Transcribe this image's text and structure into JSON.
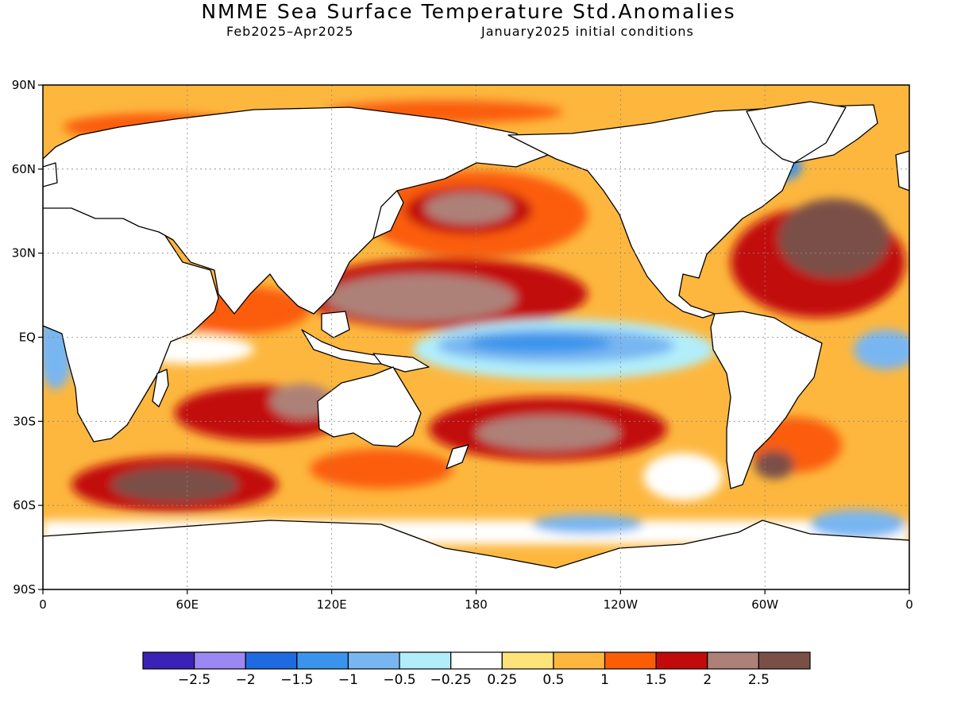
{
  "title": "NMME Sea Surface Temperature Std.Anomalies",
  "subtitle_left": "Feb2025–Apr2025",
  "subtitle_right": "January2025 initial conditions",
  "lat_labels": [
    "90N",
    "60N",
    "30N",
    "EQ",
    "30S",
    "60S",
    "90S"
  ],
  "lon_labels": [
    "0",
    "60E",
    "120E",
    "180",
    "120W",
    "60W",
    "0"
  ],
  "colorbar": {
    "colors": [
      "#3a22b6",
      "#9b88f2",
      "#1f6ae0",
      "#3a94ec",
      "#78b6f2",
      "#b2eefa",
      "#ffffff",
      "#fee37a",
      "#fdb73e",
      "#fb5d07",
      "#c20a0a",
      "#ad8178",
      "#7a5046"
    ],
    "labels": [
      "−2.5",
      "−2",
      "−1.5",
      "−1",
      "−0.5",
      "−0.25",
      "0.25",
      "0.5",
      "1",
      "1.5",
      "2",
      "2.5"
    ]
  }
}
